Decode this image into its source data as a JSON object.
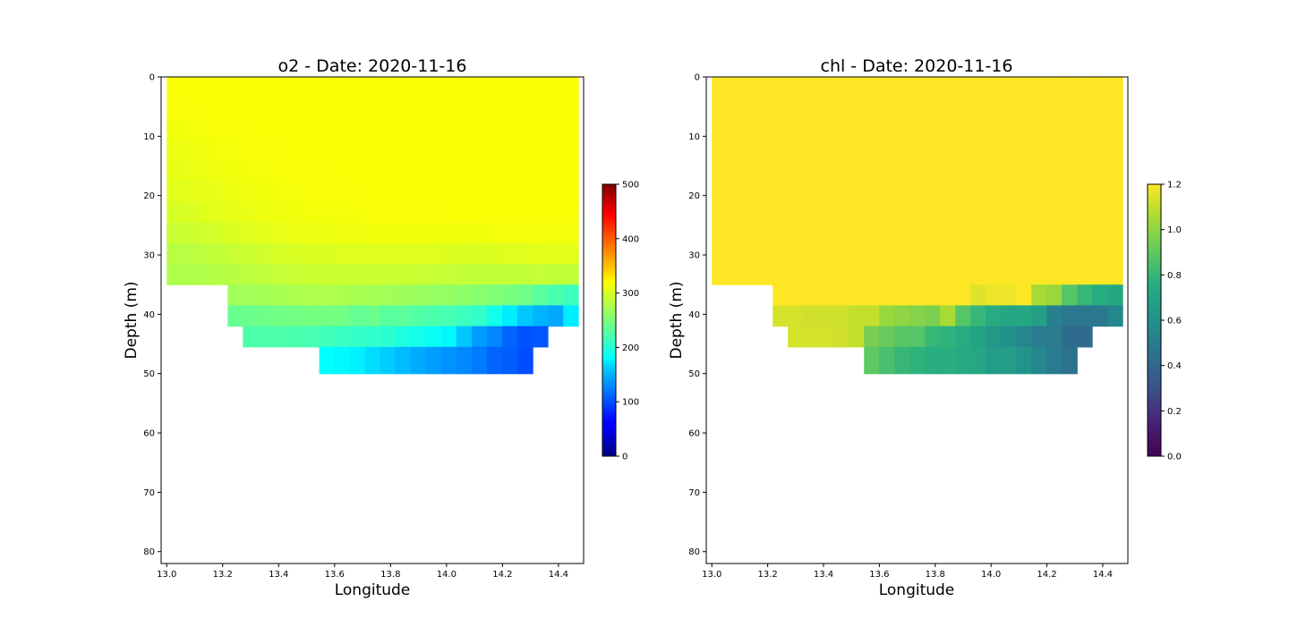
{
  "chart_data": [
    {
      "type": "heatmap",
      "title": "o2 - Date: 2020-11-16",
      "xlabel": "Longitude",
      "ylabel": "Depth (m)",
      "x_ticks": [
        "13.0",
        "13.2",
        "13.4",
        "13.6",
        "13.8",
        "14.0",
        "14.2",
        "14.4"
      ],
      "y_ticks": [
        "0",
        "10",
        "20",
        "30",
        "40",
        "50",
        "60",
        "70",
        "80"
      ],
      "xlim": [
        12.98,
        14.49
      ],
      "ylim": [
        82,
        0
      ],
      "colormap": "jet",
      "colorbar_range": [
        0,
        500
      ],
      "colorbar_ticks": [
        "0",
        "100",
        "200",
        "300",
        "400",
        "500"
      ],
      "lon": [
        13.0,
        13.054,
        13.109,
        13.163,
        13.218,
        13.272,
        13.327,
        13.381,
        13.436,
        13.49,
        13.545,
        13.599,
        13.654,
        13.708,
        13.763,
        13.817,
        13.872,
        13.926,
        13.981,
        14.035,
        14.09,
        14.144,
        14.199,
        14.253,
        14.308,
        14.362,
        14.417,
        14.471
      ],
      "depth_top": [
        0,
        3.5,
        7,
        10.5,
        14,
        17.5,
        21,
        24.5,
        28,
        31.5,
        35,
        38.5,
        42,
        45.5
      ],
      "depth_bottom": [
        3.5,
        7,
        10.5,
        14,
        17.5,
        21,
        24.5,
        28,
        31.5,
        35,
        38.5,
        42,
        45.5,
        50
      ],
      "values": [
        [
          318,
          318,
          318,
          318,
          318,
          318,
          318,
          318,
          318,
          318,
          318,
          318,
          318,
          318,
          318,
          318,
          318,
          318,
          318,
          318,
          318,
          318,
          318,
          318,
          318,
          318,
          318
        ],
        [
          316,
          316,
          317,
          317,
          317,
          317,
          317,
          318,
          318,
          318,
          318,
          318,
          318,
          318,
          318,
          318,
          318,
          318,
          318,
          318,
          318,
          318,
          318,
          318,
          318,
          318,
          318
        ],
        [
          313,
          314,
          315,
          316,
          316,
          316,
          317,
          317,
          317,
          317,
          317,
          318,
          318,
          318,
          318,
          318,
          318,
          318,
          318,
          318,
          318,
          318,
          318,
          318,
          318,
          318,
          318
        ],
        [
          310,
          311,
          313,
          314,
          315,
          316,
          316,
          316,
          317,
          317,
          317,
          317,
          317,
          317,
          318,
          318,
          318,
          318,
          318,
          318,
          318,
          318,
          318,
          318,
          318,
          318,
          318
        ],
        [
          307,
          308,
          310,
          312,
          313,
          314,
          315,
          316,
          316,
          316,
          316,
          317,
          317,
          317,
          317,
          317,
          318,
          318,
          318,
          318,
          318,
          318,
          318,
          318,
          318,
          318,
          318
        ],
        [
          303,
          305,
          307,
          309,
          311,
          312,
          313,
          314,
          315,
          316,
          316,
          316,
          316,
          317,
          317,
          317,
          317,
          317,
          317,
          318,
          318,
          318,
          318,
          318,
          318,
          318,
          318
        ],
        [
          298,
          300,
          303,
          305,
          307,
          309,
          311,
          312,
          313,
          314,
          314,
          315,
          315,
          316,
          316,
          316,
          316,
          316,
          317,
          317,
          317,
          317,
          317,
          317,
          317,
          317,
          317
        ],
        [
          290,
          292,
          295,
          298,
          301,
          304,
          306,
          308,
          309,
          310,
          311,
          312,
          312,
          313,
          313,
          313,
          313,
          313,
          313,
          313,
          313,
          314,
          314,
          314,
          314,
          314,
          314
        ],
        [
          282,
          283,
          286,
          288,
          291,
          293,
          296,
          298,
          300,
          301,
          302,
          303,
          303,
          303,
          303,
          303,
          303,
          303,
          302,
          302,
          302,
          302,
          303,
          304,
          305,
          305,
          305
        ],
        [
          276,
          277,
          278,
          280,
          282,
          284,
          287,
          289,
          291,
          292,
          293,
          293,
          293,
          293,
          292,
          292,
          291,
          290,
          289,
          288,
          288,
          288,
          288,
          288,
          289,
          288,
          287
        ],
        [
          null,
          null,
          null,
          null,
          269,
          270,
          272,
          274,
          275,
          276,
          276,
          276,
          274,
          272,
          270,
          268,
          266,
          264,
          262,
          259,
          256,
          253,
          248,
          242,
          230,
          222,
          215
        ],
        [
          null,
          null,
          null,
          null,
          238,
          240,
          242,
          244,
          245,
          246,
          246,
          244,
          236,
          240,
          230,
          233,
          226,
          223,
          220,
          214,
          208,
          190,
          175,
          160,
          150,
          145,
          175
        ],
        [
          null,
          null,
          null,
          null,
          null,
          224,
          224,
          224,
          222,
          220,
          216,
          212,
          210,
          208,
          205,
          196,
          192,
          185,
          178,
          160,
          138,
          128,
          112,
          102,
          105,
          null,
          null
        ],
        [
          null,
          null,
          null,
          null,
          null,
          null,
          null,
          null,
          null,
          null,
          180,
          178,
          176,
          170,
          162,
          154,
          146,
          140,
          134,
          130,
          122,
          112,
          108,
          100,
          null,
          null,
          null
        ]
      ]
    },
    {
      "type": "heatmap",
      "title": "chl - Date: 2020-11-16",
      "xlabel": "Longitude",
      "ylabel": "Depth (m)",
      "x_ticks": [
        "13.0",
        "13.2",
        "13.4",
        "13.6",
        "13.8",
        "14.0",
        "14.2",
        "14.4"
      ],
      "y_ticks": [
        "0",
        "10",
        "20",
        "30",
        "40",
        "50",
        "60",
        "70",
        "80"
      ],
      "xlim": [
        12.98,
        14.49
      ],
      "ylim": [
        82,
        0
      ],
      "colormap": "viridis",
      "colorbar_range": [
        0.0,
        1.2
      ],
      "colorbar_ticks": [
        "0.0",
        "0.2",
        "0.4",
        "0.6",
        "0.8",
        "1.0",
        "1.2"
      ],
      "lon": [
        13.0,
        13.054,
        13.109,
        13.163,
        13.218,
        13.272,
        13.327,
        13.381,
        13.436,
        13.49,
        13.545,
        13.599,
        13.654,
        13.708,
        13.763,
        13.817,
        13.872,
        13.926,
        13.981,
        14.035,
        14.09,
        14.144,
        14.199,
        14.253,
        14.308,
        14.362,
        14.417,
        14.471
      ],
      "depth_top": [
        0,
        35,
        38.5,
        42,
        45.5
      ],
      "depth_bottom": [
        35,
        38.5,
        42,
        45.5,
        50
      ],
      "values": [
        [
          1.2,
          1.2,
          1.2,
          1.2,
          1.2,
          1.2,
          1.2,
          1.2,
          1.2,
          1.2,
          1.2,
          1.2,
          1.2,
          1.2,
          1.2,
          1.2,
          1.2,
          1.2,
          1.2,
          1.2,
          1.2,
          1.2,
          1.2,
          1.2,
          1.2,
          1.2,
          1.2
        ],
        [
          null,
          null,
          null,
          null,
          1.2,
          1.2,
          1.2,
          1.2,
          1.2,
          1.2,
          1.2,
          1.2,
          1.2,
          1.2,
          1.2,
          1.2,
          1.2,
          1.15,
          1.17,
          1.17,
          1.2,
          1.05,
          1.02,
          0.88,
          0.8,
          0.75,
          0.72
        ],
        [
          null,
          null,
          null,
          null,
          1.13,
          1.13,
          1.12,
          1.12,
          1.12,
          1.1,
          1.1,
          1.02,
          1.0,
          0.98,
          0.96,
          1.05,
          0.88,
          0.8,
          0.75,
          0.72,
          0.72,
          0.68,
          0.52,
          0.48,
          0.48,
          0.48,
          0.55
        ],
        [
          null,
          null,
          null,
          null,
          null,
          1.13,
          1.13,
          1.13,
          1.12,
          1.1,
          0.95,
          0.92,
          0.88,
          0.88,
          0.8,
          0.78,
          0.75,
          0.7,
          0.64,
          0.6,
          0.55,
          0.5,
          0.5,
          0.42,
          0.42,
          null,
          null
        ],
        [
          null,
          null,
          null,
          null,
          null,
          null,
          null,
          null,
          null,
          null,
          0.9,
          0.85,
          0.8,
          0.78,
          0.76,
          0.76,
          0.74,
          0.72,
          0.66,
          0.66,
          0.62,
          0.56,
          0.5,
          0.46,
          null,
          null,
          null
        ]
      ]
    }
  ]
}
